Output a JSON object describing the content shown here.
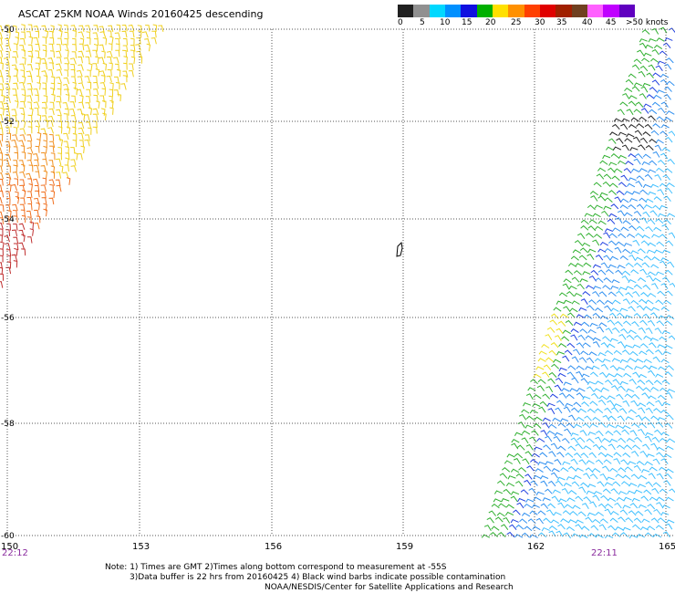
{
  "title": "ASCAT 25KM NOAA Winds 20160425 descending",
  "legend": {
    "labels": [
      "0",
      "5",
      "10",
      "15",
      "20",
      "25",
      "30",
      "35",
      "40",
      "45",
      ">50 knots"
    ],
    "colors": [
      "#202020",
      "#909090",
      "#00d8ff",
      "#0090ff",
      "#1010e0",
      "#00b000",
      "#ffe000",
      "#ff9000",
      "#ff4000",
      "#e00000",
      "#a02000",
      "#704020",
      "#ff60ff",
      "#c000ff",
      "#6000c0"
    ]
  },
  "map": {
    "lat_labels": [
      "-50",
      "-52",
      "-54",
      "-56",
      "-58",
      "-60"
    ],
    "lon_labels": [
      "150",
      "153",
      "156",
      "159",
      "162",
      "165"
    ],
    "time_left": "22:12",
    "time_right": "22:11"
  },
  "notes": {
    "line1": "Note: 1) Times are GMT 2)Times along bottom correspond to measurement at -55S",
    "line2": "3)Data buffer is 22 hrs from 20160425 4) Black wind barbs indicate possible contamination",
    "line3": "NOAA/NESDIS/Center for Satellite Applications and Research"
  }
}
